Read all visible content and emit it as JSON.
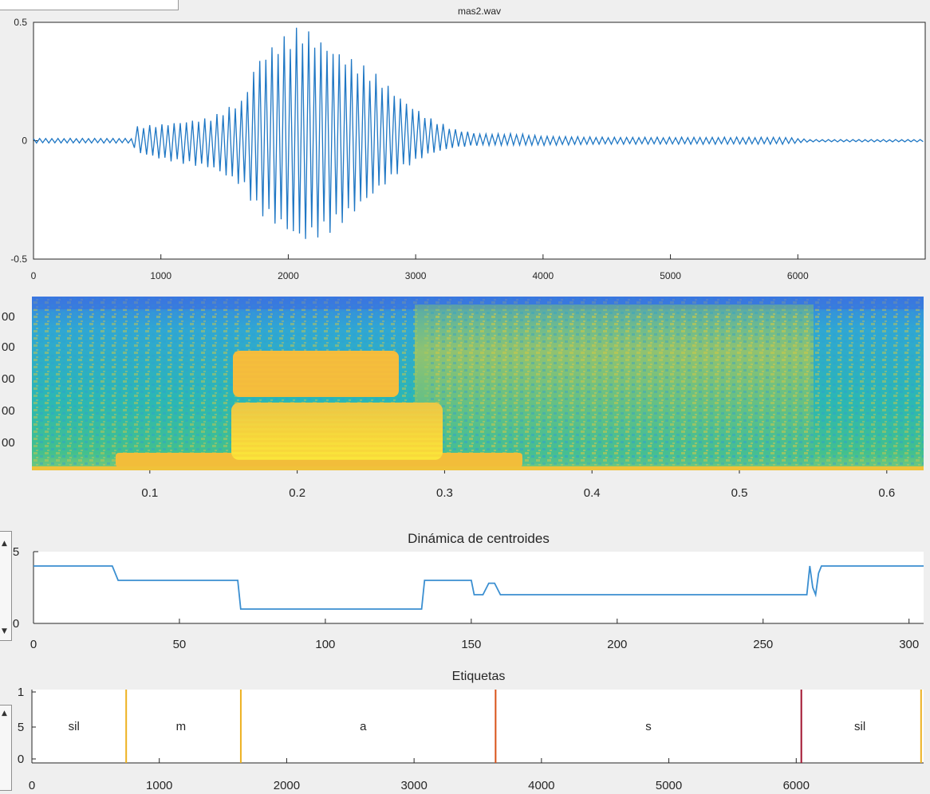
{
  "chart_data": [
    {
      "type": "line",
      "title": "mas2.wav",
      "xlim": [
        0,
        7000
      ],
      "ylim": [
        -0.5,
        0.5
      ],
      "x_ticks": [
        "0",
        "1000",
        "2000",
        "3000",
        "4000",
        "5000",
        "6000"
      ],
      "y_ticks": [
        "0.5",
        "0",
        "-0.5"
      ],
      "envelope": {
        "x": [
          0,
          780,
          800,
          1000,
          1400,
          1650,
          1750,
          1900,
          2100,
          2300,
          2500,
          2700,
          2900,
          3100,
          3300,
          3500,
          3800,
          4000,
          4500,
          5000,
          5500,
          5900,
          6100,
          7000
        ],
        "upper": [
          0.01,
          0.01,
          0.06,
          0.07,
          0.1,
          0.18,
          0.35,
          0.42,
          0.49,
          0.42,
          0.35,
          0.28,
          0.18,
          0.1,
          0.05,
          0.03,
          0.03,
          0.02,
          0.015,
          0.015,
          0.015,
          0.015,
          0.005,
          0.005
        ],
        "lower": [
          -0.01,
          -0.01,
          -0.05,
          -0.08,
          -0.12,
          -0.2,
          -0.3,
          -0.36,
          -0.44,
          -0.4,
          -0.32,
          -0.22,
          -0.12,
          -0.06,
          -0.03,
          -0.02,
          -0.02,
          -0.02,
          -0.015,
          -0.015,
          -0.015,
          -0.015,
          -0.005,
          -0.005
        ]
      },
      "grid": false
    },
    {
      "type": "heatmap",
      "title": "",
      "xlim": [
        0.02,
        0.625
      ],
      "x_ticks": [
        "0.1",
        "0.2",
        "0.3",
        "0.4",
        "0.5",
        "0.6"
      ],
      "y_ticks": [
        "00",
        "00",
        "00",
        "00",
        "00"
      ],
      "colormap": "parula",
      "regions": [
        {
          "label": "m",
          "t": [
            0.07,
            0.15
          ],
          "energy": "low-frequency band"
        },
        {
          "label": "a",
          "t": [
            0.15,
            0.3
          ],
          "energy": "formant bands"
        },
        {
          "label": "s",
          "t": [
            0.33,
            0.55
          ],
          "energy": "broadband noise"
        }
      ]
    },
    {
      "type": "line",
      "title": "Dinámica de centroides",
      "xlim": [
        0,
        305
      ],
      "ylim": [
        0,
        5
      ],
      "x_ticks": [
        "0",
        "50",
        "100",
        "150",
        "200",
        "250",
        "300"
      ],
      "y_ticks": [
        "5",
        "0"
      ],
      "x": [
        0,
        27,
        29,
        70,
        71,
        133,
        134,
        150,
        151,
        154,
        156,
        158,
        160,
        161,
        265,
        266,
        267,
        268,
        269,
        270,
        305
      ],
      "y": [
        4,
        4,
        3,
        3,
        1,
        1,
        3,
        3,
        2,
        2,
        2.8,
        2.8,
        2,
        2,
        2,
        4,
        2.5,
        2,
        3.5,
        4,
        4
      ],
      "grid": false
    },
    {
      "type": "line",
      "title": "Etiquetas",
      "xlim": [
        0,
        7000
      ],
      "ylim": [
        0,
        1
      ],
      "x_ticks": [
        "0",
        "1000",
        "2000",
        "3000",
        "4000",
        "5000",
        "6000"
      ],
      "y_ticks": [
        "1",
        "5",
        "0"
      ],
      "boundaries": [
        {
          "x": 740,
          "color": "#edb120"
        },
        {
          "x": 1640,
          "color": "#edb120"
        },
        {
          "x": 3640,
          "color": "#d95319"
        },
        {
          "x": 6040,
          "color": "#a2142f"
        },
        {
          "x": 6980,
          "color": "#edb120"
        }
      ],
      "segments": [
        {
          "label": "sil",
          "x": 330
        },
        {
          "label": "m",
          "x": 1170
        },
        {
          "label": "a",
          "x": 2600
        },
        {
          "label": "s",
          "x": 4840
        },
        {
          "label": "sil",
          "x": 6500
        }
      ],
      "grid": false
    }
  ],
  "colors": {
    "line": "#0072bd",
    "axes": "#262626",
    "background": "#efefef"
  },
  "ui": {
    "slider_up_arrow": "▲",
    "slider_down_arrow": "▼"
  }
}
